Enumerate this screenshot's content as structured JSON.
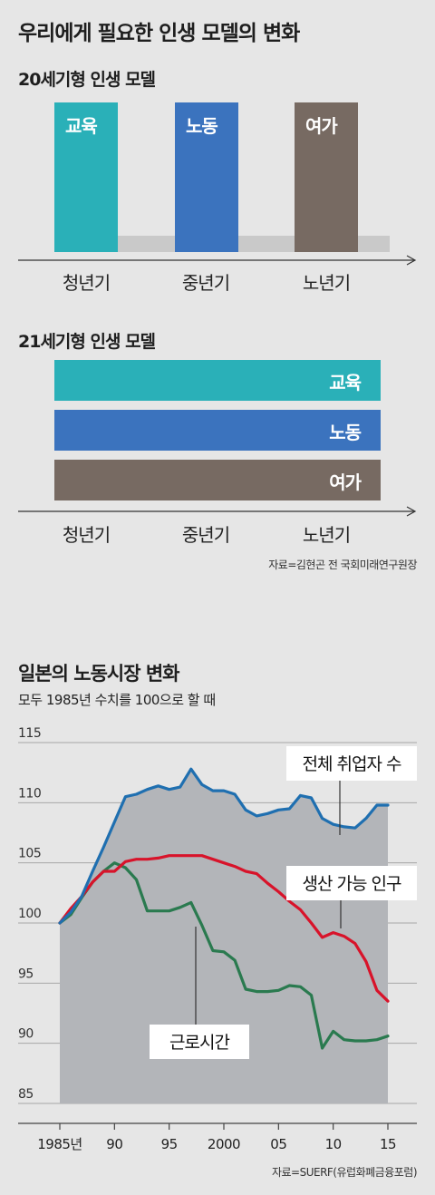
{
  "page": {
    "title": "우리에게 필요한 인생 모델의 변화",
    "source1": "자료=김현곤 전 국회미래연구원장",
    "source2": "자료=SUERF(유럽화폐금융포럼)"
  },
  "colors": {
    "education": "#2ab0b8",
    "work": "#3b73be",
    "leisure": "#776a62",
    "employed": "#1f6fb0",
    "working_age": "#d8132a",
    "hours": "#2a7a4f",
    "area_fill": "#b3b5b9"
  },
  "model20": {
    "title": "20세기형 인생 모델",
    "stages": [
      "교육",
      "노동",
      "여가"
    ],
    "ages": [
      "청년기",
      "중년기",
      "노년기"
    ]
  },
  "model21": {
    "title": "21세기형 인생 모델",
    "stages": [
      "교육",
      "노동",
      "여가"
    ],
    "ages": [
      "청년기",
      "중년기",
      "노년기"
    ]
  },
  "chart_data": {
    "type": "line",
    "title": "일본의 노동시장 변화",
    "subtitle": "모두 1985년 수치를 100으로 할 때",
    "ylim": [
      85,
      115
    ],
    "yticks": [
      85,
      90,
      95,
      100,
      105,
      110,
      115
    ],
    "xlim": [
      1985,
      2015
    ],
    "xticks": [
      {
        "value": 1985,
        "label": "1985년"
      },
      {
        "value": 1990,
        "label": "90"
      },
      {
        "value": 1995,
        "label": "95"
      },
      {
        "value": 2000,
        "label": "2000"
      },
      {
        "value": 2005,
        "label": "05"
      },
      {
        "value": 2010,
        "label": "10"
      },
      {
        "value": 2015,
        "label": "15"
      }
    ],
    "x": [
      1985,
      1986,
      1987,
      1988,
      1989,
      1990,
      1991,
      1992,
      1993,
      1994,
      1995,
      1996,
      1997,
      1998,
      1999,
      2000,
      2001,
      2002,
      2003,
      2004,
      2005,
      2006,
      2007,
      2008,
      2009,
      2010,
      2011,
      2012,
      2013,
      2014,
      2015
    ],
    "series": [
      {
        "name": "전체 취업자 수",
        "key": "employed",
        "values": [
          100.0,
          100.9,
          102.2,
          104.3,
          106.3,
          108.4,
          110.5,
          110.7,
          111.1,
          111.4,
          111.1,
          111.3,
          112.8,
          111.5,
          111.0,
          111.0,
          110.7,
          109.4,
          108.9,
          109.1,
          109.4,
          109.5,
          110.6,
          110.4,
          108.7,
          108.2,
          108.0,
          107.9,
          108.7,
          109.8,
          109.8
        ]
      },
      {
        "name": "생산 가능 인구",
        "key": "working_age",
        "values": [
          100.0,
          101.2,
          102.2,
          103.4,
          104.3,
          104.3,
          105.1,
          105.3,
          105.3,
          105.4,
          105.6,
          105.6,
          105.6,
          105.6,
          105.3,
          105.0,
          104.7,
          104.3,
          104.1,
          103.3,
          102.6,
          101.8,
          101.1,
          100.0,
          98.8,
          99.2,
          98.9,
          98.3,
          96.8,
          94.4,
          93.5
        ]
      },
      {
        "name": "근로시간",
        "key": "hours",
        "values": [
          100.0,
          100.7,
          102.1,
          103.4,
          104.3,
          105.0,
          104.6,
          103.6,
          101.0,
          101.0,
          101.0,
          101.3,
          101.7,
          99.8,
          97.7,
          97.6,
          96.9,
          94.5,
          94.3,
          94.3,
          94.4,
          94.8,
          94.7,
          94.0,
          89.6,
          91.0,
          90.3,
          90.2,
          90.2,
          90.3,
          90.6
        ]
      }
    ]
  }
}
